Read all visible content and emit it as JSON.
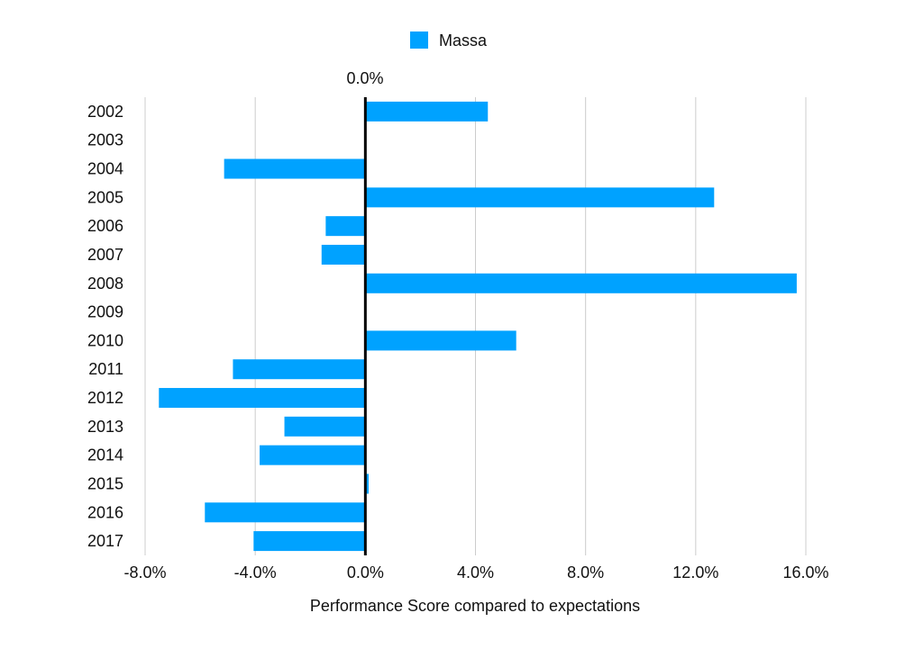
{
  "chart_data": {
    "type": "bar",
    "orientation": "horizontal",
    "categories": [
      "2002",
      "2003",
      "2004",
      "2005",
      "2006",
      "2007",
      "2008",
      "2009",
      "2010",
      "2011",
      "2012",
      "2013",
      "2014",
      "2015",
      "2016",
      "2017"
    ],
    "series": [
      {
        "name": "Massa",
        "color": "#00a2ff",
        "values": [
          4.45,
          null,
          -5.13,
          12.67,
          -1.44,
          -1.59,
          15.67,
          null,
          5.48,
          -4.81,
          -7.5,
          -2.94,
          -3.84,
          0.12,
          -5.83,
          -4.06
        ]
      }
    ],
    "xlabel": "Performance Score compared to expectations",
    "ylabel": "",
    "xlim": [
      -8,
      16
    ],
    "xticks": [
      -8,
      -4,
      0,
      4,
      8,
      12,
      16
    ],
    "xtick_labels": [
      "-8.0%",
      "-4.0%",
      "0.0%",
      "4.0%",
      "8.0%",
      "12.0%",
      "16.0%"
    ],
    "zero_line_label": "0.0%",
    "grid": true,
    "legend": "top-center"
  }
}
